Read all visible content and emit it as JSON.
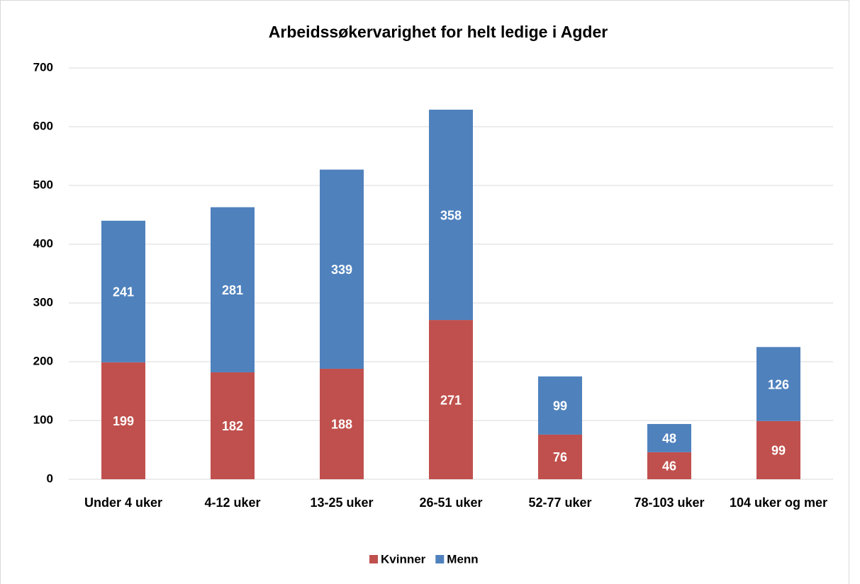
{
  "chart_data": {
    "type": "stacked_bar",
    "title": "Arbeidssøkervarighet for helt ledige i Agder",
    "categories": [
      "Under 4 uker",
      "4-12 uker",
      "13-25 uker",
      "26-51 uker",
      "52-77 uker",
      "78-103 uker",
      "104 uker og mer"
    ],
    "series": [
      {
        "name": "Kvinner",
        "color": "#c0504d",
        "values": [
          199,
          182,
          188,
          271,
          76,
          46,
          99
        ]
      },
      {
        "name": "Menn",
        "color": "#4f81bd",
        "values": [
          241,
          281,
          339,
          358,
          99,
          48,
          126
        ]
      }
    ],
    "ylim": [
      0,
      700
    ],
    "yticks": [
      0,
      100,
      200,
      300,
      400,
      500,
      600,
      700
    ],
    "grid": true,
    "legend": "bottom"
  }
}
